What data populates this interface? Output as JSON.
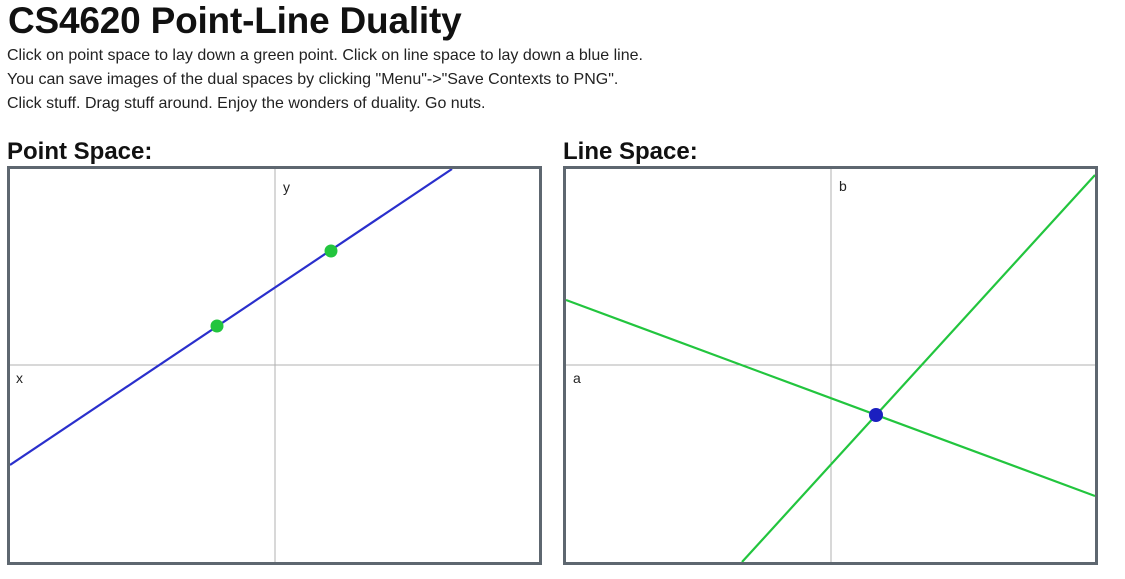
{
  "header": {
    "title": "CS4620 Point-Line Duality",
    "instructions": [
      "Click on point space to lay down a green point. Click on line space to lay down a blue line.",
      "You can save images of the dual spaces by clicking \"Menu\"->\"Save Contexts to PNG\".",
      "Click stuff. Drag stuff around. Enjoy the wonders of duality. Go nuts."
    ]
  },
  "point_space": {
    "title": "Point Space:",
    "x_axis_label": "x",
    "y_axis_label": "y",
    "line_color": "#2a2fcc",
    "point_color": "#22c53e",
    "axis_color": "#b0b0b0"
  },
  "line_space": {
    "title": "Line Space:",
    "x_axis_label": "a",
    "y_axis_label": "b",
    "line_color": "#22c53e",
    "point_color": "#1b1fc0",
    "axis_color": "#b0b0b0"
  }
}
